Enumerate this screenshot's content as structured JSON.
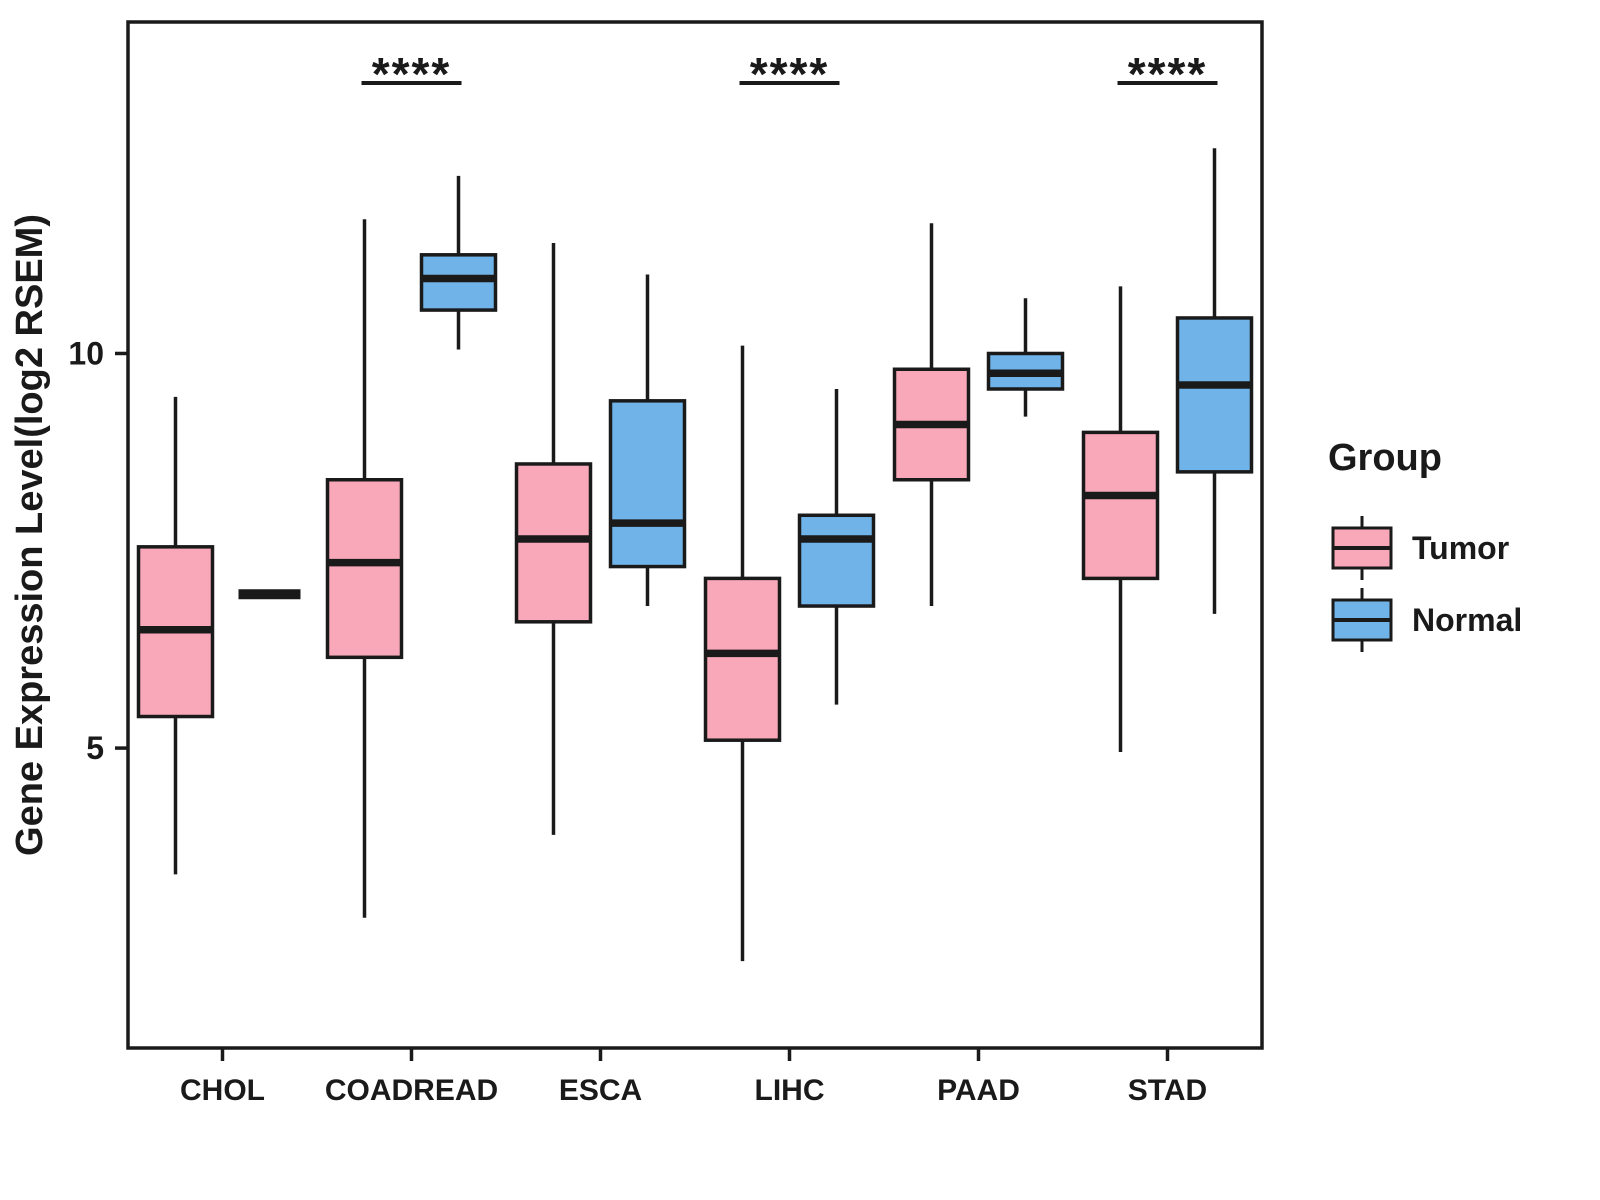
{
  "figure": {
    "background": "#FFFFFF"
  },
  "chart_data": {
    "type": "boxplot",
    "title": "",
    "ylabel": "Gene Expression Level(log2 RSEM)",
    "xlabel": "",
    "ylim": [
      1.2,
      14.2
    ],
    "yticks": [
      5,
      10
    ],
    "grid": false,
    "ink_color": "#1A1A1A",
    "categories": [
      "CHOL",
      "COADREAD",
      "ESCA",
      "LIHC",
      "PAAD",
      "STAD"
    ],
    "series": [
      {
        "name": "Tumor",
        "color": "#F8A8B8",
        "boxes": [
          {
            "low": 3.4,
            "q1": 5.4,
            "median": 6.5,
            "q3": 7.55,
            "high": 9.45
          },
          {
            "low": 2.85,
            "q1": 6.15,
            "median": 7.35,
            "q3": 8.4,
            "high": 11.7
          },
          {
            "low": 3.9,
            "q1": 6.6,
            "median": 7.65,
            "q3": 8.6,
            "high": 11.4
          },
          {
            "low": 2.3,
            "q1": 5.1,
            "median": 6.2,
            "q3": 7.15,
            "high": 10.1
          },
          {
            "low": 6.8,
            "q1": 8.4,
            "median": 9.1,
            "q3": 9.8,
            "high": 11.65
          },
          {
            "low": 4.95,
            "q1": 7.15,
            "median": 8.2,
            "q3": 9.0,
            "high": 10.85
          }
        ]
      },
      {
        "name": "Normal",
        "color": "#6FB3E8",
        "boxes": [
          {
            "median": 6.95,
            "line_only": true
          },
          {
            "low": 10.05,
            "q1": 10.55,
            "median": 10.95,
            "q3": 11.25,
            "high": 12.25
          },
          {
            "low": 6.8,
            "q1": 7.3,
            "median": 7.85,
            "q3": 9.4,
            "high": 11.0
          },
          {
            "low": 5.55,
            "q1": 6.8,
            "median": 7.65,
            "q3": 7.95,
            "high": 9.55
          },
          {
            "low": 9.2,
            "q1": 9.55,
            "median": 9.75,
            "q3": 10.0,
            "high": 10.7
          },
          {
            "low": 6.7,
            "q1": 8.5,
            "median": 9.6,
            "q3": 10.45,
            "high": 12.6
          }
        ]
      }
    ],
    "significance": [
      {
        "category": "COADREAD",
        "label": "****"
      },
      {
        "category": "LIHC",
        "label": "****"
      },
      {
        "category": "STAD",
        "label": "****"
      }
    ],
    "legend": {
      "title": "Group",
      "position": "right",
      "entries": [
        {
          "label": "Tumor",
          "color": "#F8A8B8"
        },
        {
          "label": "Normal",
          "color": "#6FB3E8"
        }
      ]
    }
  }
}
